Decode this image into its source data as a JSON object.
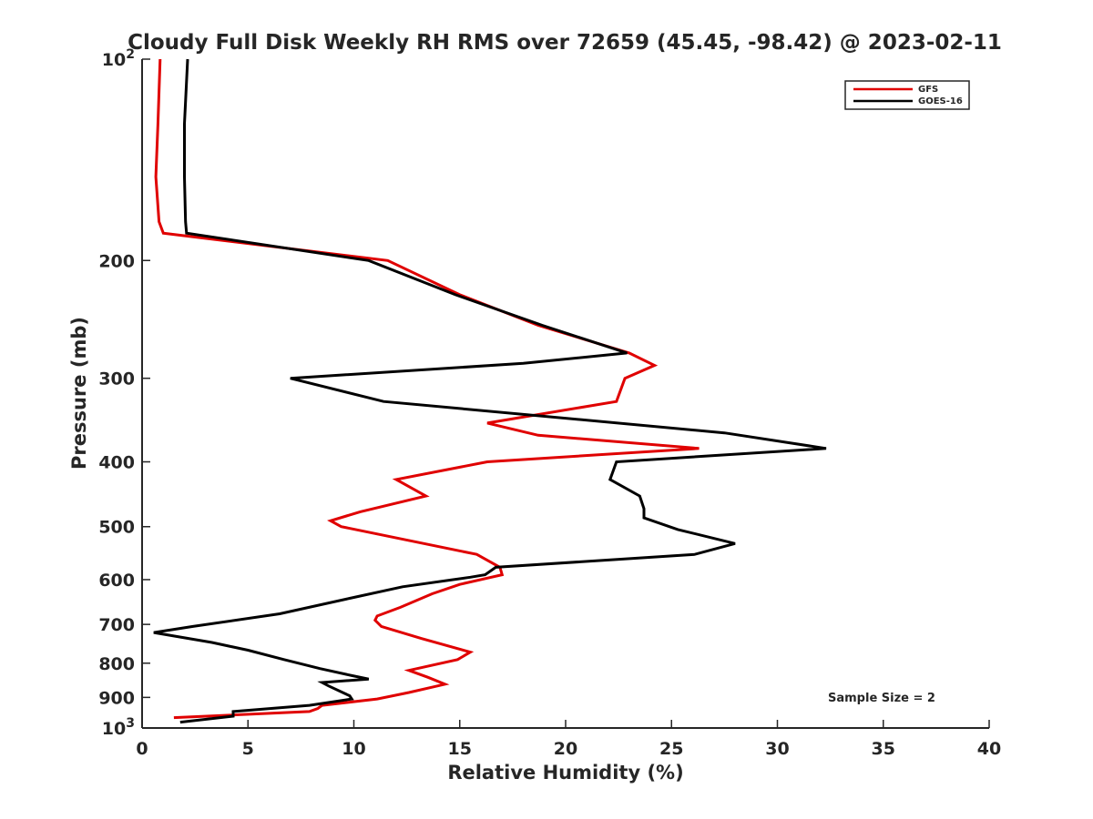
{
  "chart_data": {
    "type": "line",
    "title": "Cloudy Full Disk Weekly RH RMS over 72659 (45.45, -98.42) @ 2023-02-11",
    "xlabel": "Relative Humidity (%)",
    "ylabel": "Pressure (mb)",
    "xlim": [
      0,
      40
    ],
    "ylim": [
      100,
      1000
    ],
    "y_scale": "log",
    "y_reversed": true,
    "grid": false,
    "legend_position": "top-right",
    "annotation": "Sample Size = 2",
    "x_ticks": [
      0,
      5,
      10,
      15,
      20,
      25,
      30,
      35,
      40
    ],
    "x_tick_labels": [
      "0",
      "5",
      "10",
      "15",
      "20",
      "25",
      "30",
      "35",
      "40"
    ],
    "y_ticks": [
      100,
      200,
      300,
      400,
      500,
      600,
      700,
      800,
      900,
      1000
    ],
    "y_tick_labels": [
      {
        "base": "10",
        "exp": "2"
      },
      {
        "base": "200",
        "exp": ""
      },
      {
        "base": "300",
        "exp": ""
      },
      {
        "base": "400",
        "exp": ""
      },
      {
        "base": "500",
        "exp": ""
      },
      {
        "base": "600",
        "exp": ""
      },
      {
        "base": "700",
        "exp": ""
      },
      {
        "base": "800",
        "exp": ""
      },
      {
        "base": "900",
        "exp": ""
      },
      {
        "base": "10",
        "exp": "3"
      }
    ],
    "series": [
      {
        "name": "GFS",
        "color": "#e00000",
        "points": [
          [
            0.85,
            100
          ],
          [
            0.75,
            125
          ],
          [
            0.65,
            150
          ],
          [
            0.8,
            175
          ],
          [
            1.0,
            182
          ],
          [
            11.6,
            200
          ],
          [
            15.0,
            225
          ],
          [
            18.7,
            250
          ],
          [
            23.0,
            275
          ],
          [
            24.2,
            287
          ],
          [
            22.8,
            300
          ],
          [
            22.4,
            325
          ],
          [
            16.3,
            350
          ],
          [
            18.7,
            365
          ],
          [
            26.3,
            382
          ],
          [
            16.3,
            400
          ],
          [
            12.0,
            425
          ],
          [
            13.4,
            450
          ],
          [
            10.3,
            475
          ],
          [
            8.9,
            490
          ],
          [
            9.4,
            500
          ],
          [
            15.8,
            550
          ],
          [
            16.9,
            575
          ],
          [
            17.0,
            590
          ],
          [
            15.0,
            610
          ],
          [
            13.7,
            630
          ],
          [
            12.2,
            660
          ],
          [
            11.1,
            680
          ],
          [
            11.0,
            690
          ],
          [
            11.3,
            705
          ],
          [
            13.2,
            735
          ],
          [
            15.5,
            770
          ],
          [
            14.9,
            790
          ],
          [
            12.6,
            820
          ],
          [
            13.5,
            840
          ],
          [
            14.3,
            860
          ],
          [
            12.6,
            885
          ],
          [
            11.1,
            905
          ],
          [
            8.5,
            925
          ],
          [
            8.3,
            935
          ],
          [
            7.9,
            945
          ],
          [
            1.5,
            965
          ]
        ]
      },
      {
        "name": "GOES-16",
        "color": "#000000",
        "points": [
          [
            2.15,
            100
          ],
          [
            2.0,
            125
          ],
          [
            2.0,
            150
          ],
          [
            2.05,
            175
          ],
          [
            2.1,
            182
          ],
          [
            10.7,
            200
          ],
          [
            14.8,
            225
          ],
          [
            18.9,
            250
          ],
          [
            22.9,
            275
          ],
          [
            18.0,
            285
          ],
          [
            7.0,
            300
          ],
          [
            11.4,
            325
          ],
          [
            27.5,
            362
          ],
          [
            32.3,
            382
          ],
          [
            22.4,
            400
          ],
          [
            22.1,
            425
          ],
          [
            23.5,
            450
          ],
          [
            23.7,
            470
          ],
          [
            23.7,
            485
          ],
          [
            25.3,
            505
          ],
          [
            28.0,
            530
          ],
          [
            26.1,
            550
          ],
          [
            16.7,
            575
          ],
          [
            16.2,
            590
          ],
          [
            15.5,
            595
          ],
          [
            12.3,
            615
          ],
          [
            9.8,
            640
          ],
          [
            6.5,
            675
          ],
          [
            2.4,
            705
          ],
          [
            0.55,
            720
          ],
          [
            3.3,
            745
          ],
          [
            5.0,
            765
          ],
          [
            6.7,
            790
          ],
          [
            8.4,
            815
          ],
          [
            9.9,
            835
          ],
          [
            10.7,
            845
          ],
          [
            8.5,
            855
          ],
          [
            8.8,
            865
          ],
          [
            9.8,
            895
          ],
          [
            9.9,
            905
          ],
          [
            7.9,
            925
          ],
          [
            4.3,
            945
          ],
          [
            4.3,
            960
          ],
          [
            1.8,
            980
          ]
        ]
      }
    ]
  }
}
